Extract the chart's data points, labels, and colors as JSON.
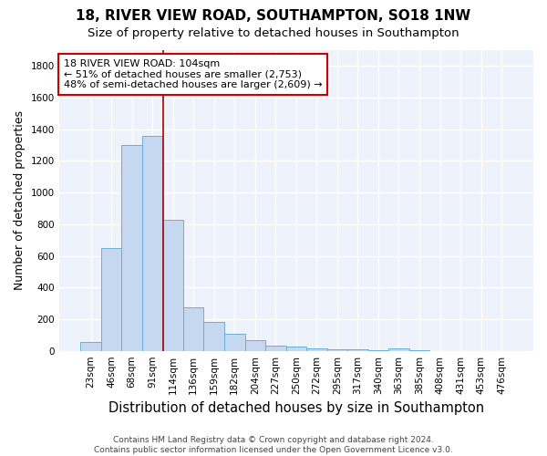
{
  "title_line1": "18, RIVER VIEW ROAD, SOUTHAMPTON, SO18 1NW",
  "title_line2": "Size of property relative to detached houses in Southampton",
  "xlabel": "Distribution of detached houses by size in Southampton",
  "ylabel": "Number of detached properties",
  "categories": [
    "23sqm",
    "46sqm",
    "68sqm",
    "91sqm",
    "114sqm",
    "136sqm",
    "159sqm",
    "182sqm",
    "204sqm",
    "227sqm",
    "250sqm",
    "272sqm",
    "295sqm",
    "317sqm",
    "340sqm",
    "363sqm",
    "385sqm",
    "408sqm",
    "431sqm",
    "453sqm",
    "476sqm"
  ],
  "values": [
    55,
    650,
    1300,
    1360,
    830,
    275,
    180,
    110,
    65,
    30,
    25,
    18,
    12,
    8,
    5,
    15,
    2,
    1,
    1,
    1,
    1
  ],
  "bar_color": "#c5d8f0",
  "bar_edge_color": "#6aafd6",
  "annotation_text": "18 RIVER VIEW ROAD: 104sqm\n← 51% of detached houses are smaller (2,753)\n48% of semi-detached houses are larger (2,609) →",
  "annotation_box_color": "#ffffff",
  "annotation_box_edge": "#cc0000",
  "vline_x": 3.52,
  "vline_color": "#aa0000",
  "ylim": [
    0,
    1900
  ],
  "yticks": [
    0,
    200,
    400,
    600,
    800,
    1000,
    1200,
    1400,
    1600,
    1800
  ],
  "footer_line1": "Contains HM Land Registry data © Crown copyright and database right 2024.",
  "footer_line2": "Contains public sector information licensed under the Open Government Licence v3.0.",
  "bg_color": "#ffffff",
  "plot_bg_color": "#eef3fb",
  "grid_color": "#ffffff",
  "title_fontsize": 11,
  "subtitle_fontsize": 9.5,
  "axis_label_fontsize": 9,
  "tick_fontsize": 7.5,
  "footer_fontsize": 6.5,
  "annot_fontsize": 8
}
